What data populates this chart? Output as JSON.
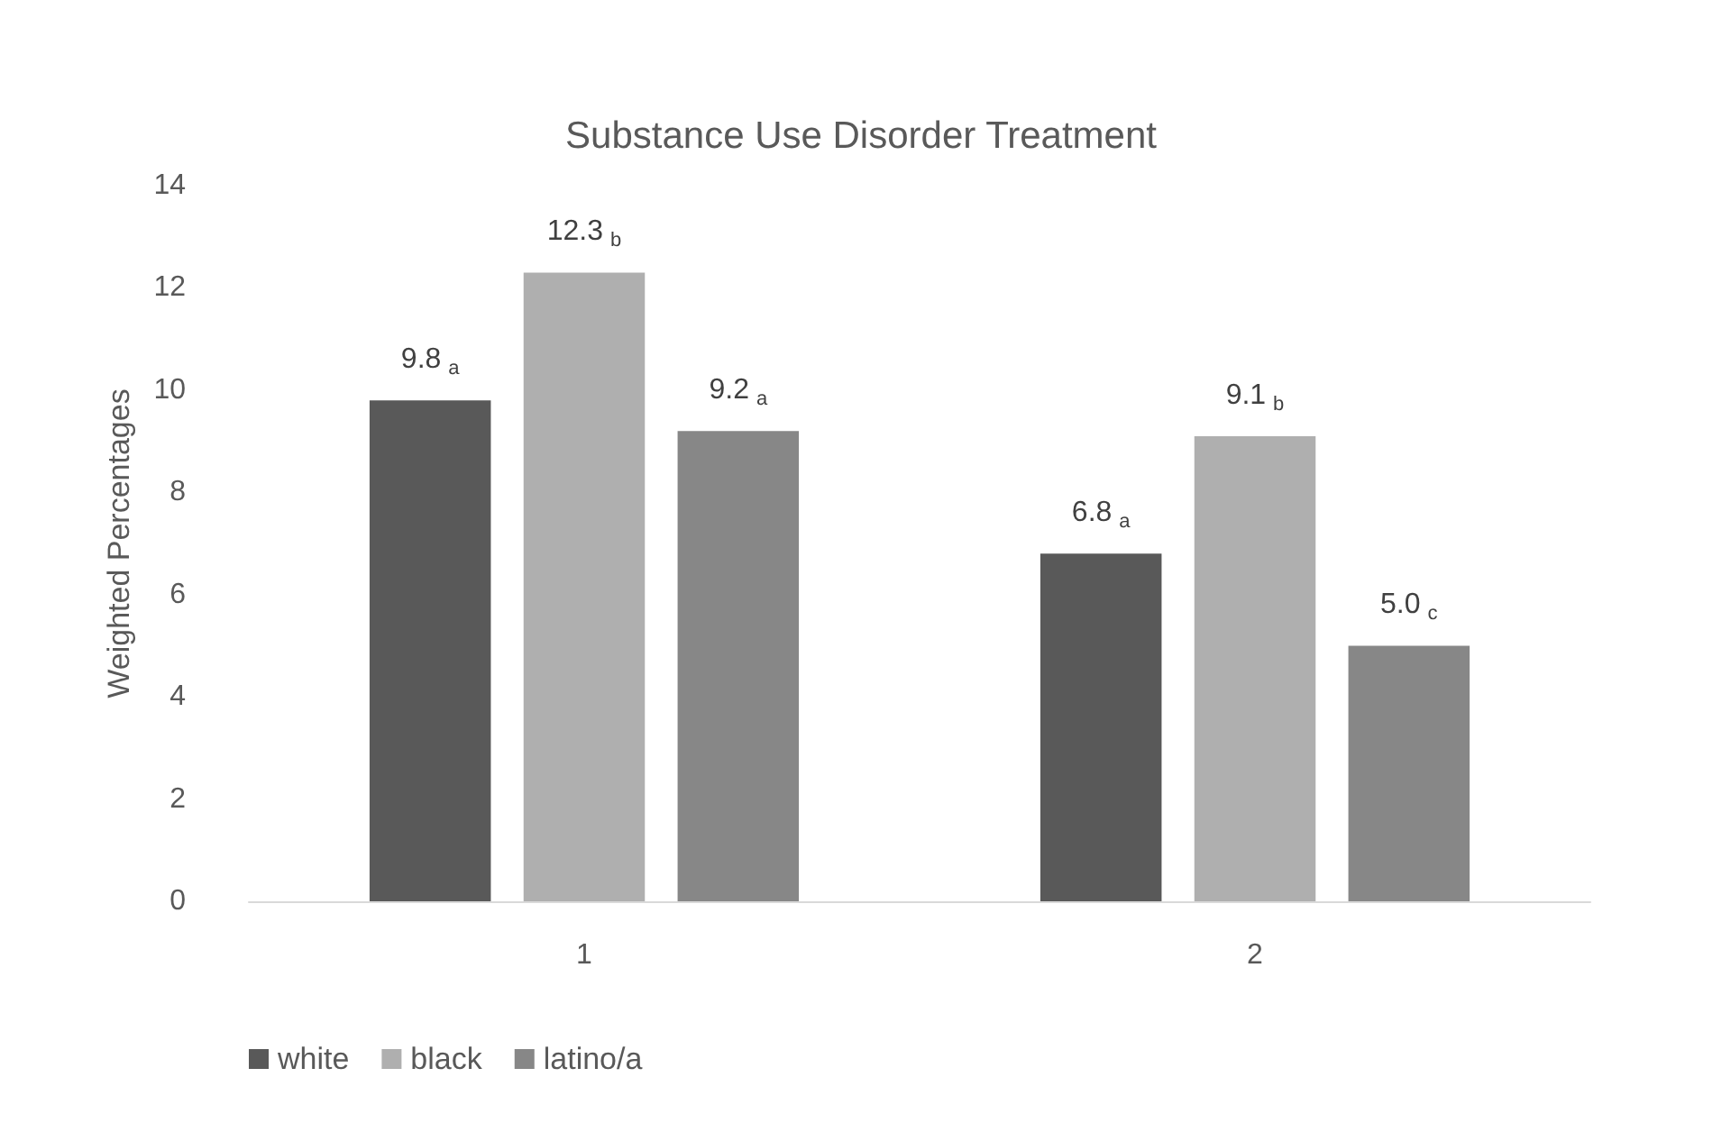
{
  "chart_data": {
    "type": "bar",
    "title": "Substance Use Disorder Treatment",
    "ylabel": "Weighted Percentages",
    "categories": [
      "1",
      "2"
    ],
    "series": [
      {
        "name": "white",
        "color": "#595959",
        "values": [
          9.8,
          6.8
        ],
        "value_labels": [
          "9.8$_{a}$",
          "6.8$_{a}$"
        ]
      },
      {
        "name": "black",
        "color": "#afafaf",
        "values": [
          12.3,
          9.1
        ],
        "value_labels": [
          "12.3$_{b}$",
          "9.1$_{b}$"
        ]
      },
      {
        "name": "latino/a",
        "color": "#878787",
        "values": [
          9.2,
          5.0
        ],
        "value_labels": [
          "9.2$_{a}$",
          "5.0$_{c}$"
        ]
      }
    ],
    "ylim": [
      0,
      14
    ],
    "yticks": [
      0,
      2,
      4,
      6,
      8,
      10,
      12,
      14
    ],
    "grid": false,
    "legend": "bottom left"
  }
}
